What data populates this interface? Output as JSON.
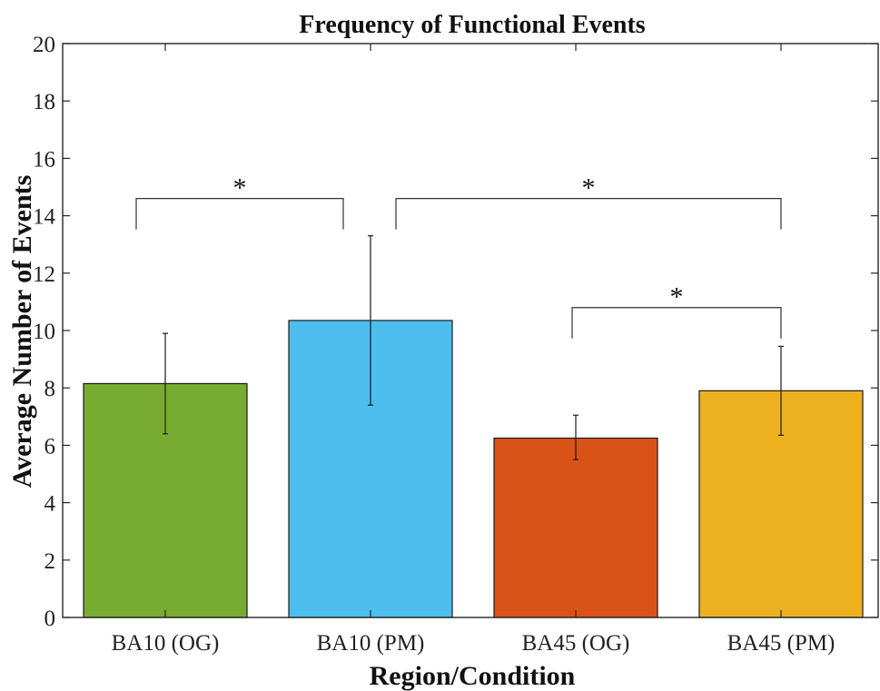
{
  "chart_data": {
    "type": "bar",
    "title": "Frequency of Functional Events",
    "xlabel": "Region/Condition",
    "ylabel": "Average Number of Events",
    "categories": [
      "BA10 (OG)",
      "BA10 (PM)",
      "BA45 (OG)",
      "BA45 (PM)"
    ],
    "values": [
      8.15,
      10.35,
      6.25,
      7.9
    ],
    "error_low": [
      6.4,
      7.4,
      5.5,
      6.35
    ],
    "error_high": [
      9.9,
      13.3,
      7.05,
      9.45
    ],
    "colors": [
      "#77AC30",
      "#4DBEEE",
      "#D95319",
      "#EDB120"
    ],
    "ylim": [
      0,
      20
    ],
    "yticks": [
      "0",
      "2",
      "4",
      "6",
      "8",
      "10",
      "12",
      "14",
      "16",
      "18",
      "20"
    ],
    "significance": [
      {
        "from": 0,
        "to": 1,
        "height": 14.6,
        "label": "*"
      },
      {
        "from": 1,
        "to": 3,
        "height": 14.6,
        "label": "*"
      },
      {
        "from": 2,
        "to": 3,
        "height": 10.8,
        "label": "*"
      }
    ],
    "grid": false,
    "legend": "none"
  }
}
